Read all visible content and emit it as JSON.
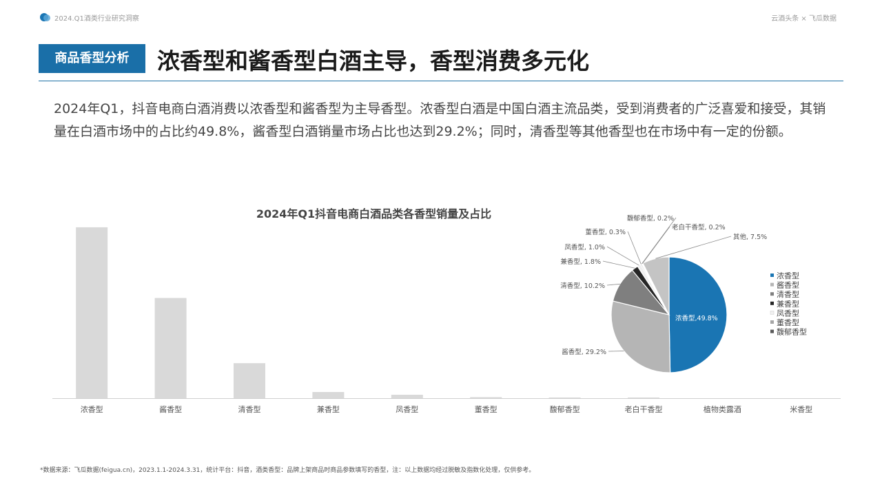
{
  "header": {
    "report_title": "2024.Q1酒类行业研究洞察",
    "source_brand": "云酒头条 × 飞瓜数据",
    "section_tag": "商品香型分析",
    "headline": "浓香型和酱香型白酒主导，香型消费多元化"
  },
  "description": "2024年Q1，抖音电商白酒消费以浓香型和酱香型为主导香型。浓香型白酒是中国白酒主流品类，受到消费者的广泛喜爱和接受，其销量在白酒市场中的占比约49.8%，酱香型白酒销量市场占比也达到29.2%；同时，清香型等其他香型也在市场中有一定的份额。",
  "footnote": "*数据来源：飞瓜数据(feigua.cn)，2023.1.1-2024.3.31，统计平台：抖音，酒类香型：品牌上架商品时商品参数填写的香型，注：以上数据均经过脱敏及指数化处理，仅供参考。",
  "chart_data": [
    {
      "type": "bar",
      "title": "2024年Q1抖音电商白酒品类各香型销量及占比",
      "categories": [
        "浓香型",
        "酱香型",
        "清香型",
        "兼香型",
        "凤香型",
        "董香型",
        "馥郁香型",
        "老白干香型",
        "植物类露酒",
        "米香型"
      ],
      "values": [
        49.8,
        29.2,
        10.2,
        1.8,
        1.0,
        0.3,
        0.2,
        0.2,
        0,
        0
      ],
      "ylim": [
        0,
        55
      ],
      "color": "#d9d9d9"
    },
    {
      "type": "pie",
      "slices": [
        {
          "name": "浓香型",
          "value": 49.8,
          "label": "浓香型,49.8%",
          "color": "#1a75b3"
        },
        {
          "name": "酱香型",
          "value": 29.2,
          "label": "酱香型, 29.2%",
          "color": "#b5b5b5"
        },
        {
          "name": "清香型",
          "value": 10.2,
          "label": "清香型, 10.2%",
          "color": "#7f7f7f"
        },
        {
          "name": "兼香型",
          "value": 1.8,
          "label": "兼香型, 1.8%",
          "color": "#262626"
        },
        {
          "name": "凤香型",
          "value": 1.0,
          "label": "凤香型, 1.0%",
          "color": "#f0f0f0"
        },
        {
          "name": "董香型",
          "value": 0.3,
          "label": "董香型, 0.3%",
          "color": "#a6a6a6"
        },
        {
          "name": "馥郁香型",
          "value": 0.2,
          "label": "馥郁香型, 0.2%",
          "color": "#595959"
        },
        {
          "name": "老白干香型",
          "value": 0.2,
          "label": "老白干香型, 0.2%",
          "color": "#cfcfcf"
        },
        {
          "name": "其他",
          "value": 7.5,
          "label": "其他, 7.5%",
          "color": "#c4c4c4"
        }
      ],
      "legend": [
        "浓香型",
        "酱香型",
        "清香型",
        "兼香型",
        "凤香型",
        "董香型",
        "馥郁香型"
      ],
      "legend_position": "right"
    }
  ]
}
